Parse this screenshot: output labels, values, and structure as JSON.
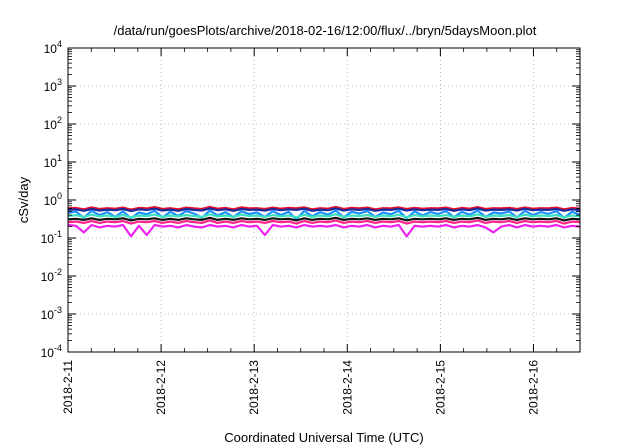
{
  "chart_data": {
    "type": "line",
    "title": "/data/run/goesPlots/archive/2018-02-16/12:00/flux/../bryn/5daysMoon.plot",
    "xlabel": "Coordinated Universal Time (UTC)",
    "ylabel": "cSv/day",
    "yscale": "log",
    "ylim": [
      0.0001,
      10000
    ],
    "xlim": [
      "2018-02-11T00:00",
      "2018-02-16T12:00"
    ],
    "grid": true,
    "y_ticks": [
      {
        "base": "10",
        "exp": "-4",
        "value": 0.0001
      },
      {
        "base": "10",
        "exp": "-3",
        "value": 0.001
      },
      {
        "base": "10",
        "exp": "-2",
        "value": 0.01
      },
      {
        "base": "10",
        "exp": "-1",
        "value": 0.1
      },
      {
        "base": "10",
        "exp": "0",
        "value": 1
      },
      {
        "base": "10",
        "exp": "1",
        "value": 10
      },
      {
        "base": "10",
        "exp": "2",
        "value": 100
      },
      {
        "base": "10",
        "exp": "3",
        "value": 1000
      },
      {
        "base": "10",
        "exp": "4",
        "value": 10000
      }
    ],
    "x_ticks": [
      "2018-2-11",
      "2018-2-12",
      "2018-2-13",
      "2018-2-14",
      "2018-2-15",
      "2018-2-16"
    ],
    "series": [
      {
        "color": "#e8102a",
        "values": [
          0.6,
          0.62,
          0.57,
          0.64,
          0.58,
          0.61,
          0.59,
          0.63,
          0.56,
          0.62,
          0.6,
          0.65,
          0.58,
          0.61,
          0.57,
          0.63,
          0.6,
          0.58,
          0.66,
          0.59,
          0.62,
          0.57,
          0.64,
          0.6,
          0.61,
          0.58,
          0.63,
          0.59,
          0.62,
          0.6,
          0.64,
          0.57,
          0.61,
          0.59,
          0.66,
          0.58,
          0.62,
          0.6,
          0.63,
          0.57,
          0.61,
          0.6,
          0.64,
          0.58,
          0.62,
          0.59,
          0.61,
          0.6,
          0.63,
          0.57,
          0.62,
          0.59,
          0.65,
          0.58,
          0.61,
          0.6,
          0.62,
          0.58,
          0.64,
          0.59,
          0.61,
          0.6,
          0.63,
          0.57,
          0.62,
          0.59
        ]
      },
      {
        "color": "#1a2a9a",
        "values": [
          0.55,
          0.57,
          0.52,
          0.58,
          0.53,
          0.56,
          0.54,
          0.58,
          0.51,
          0.57,
          0.55,
          0.59,
          0.53,
          0.56,
          0.52,
          0.58,
          0.55,
          0.53,
          0.6,
          0.54,
          0.57,
          0.52,
          0.58,
          0.55,
          0.56,
          0.53,
          0.58,
          0.54,
          0.57,
          0.55,
          0.59,
          0.52,
          0.56,
          0.54,
          0.6,
          0.53,
          0.57,
          0.55,
          0.58,
          0.52,
          0.56,
          0.55,
          0.59,
          0.53,
          0.57,
          0.54,
          0.56,
          0.55,
          0.58,
          0.52,
          0.57,
          0.54,
          0.6,
          0.53,
          0.56,
          0.55,
          0.57,
          0.53,
          0.59,
          0.54,
          0.56,
          0.55,
          0.58,
          0.52,
          0.57,
          0.54
        ]
      },
      {
        "color": "#1e90ff",
        "values": [
          0.45,
          0.5,
          0.34,
          0.52,
          0.4,
          0.48,
          0.36,
          0.5,
          0.33,
          0.47,
          0.42,
          0.52,
          0.35,
          0.49,
          0.38,
          0.51,
          0.44,
          0.34,
          0.53,
          0.39,
          0.48,
          0.35,
          0.5,
          0.43,
          0.47,
          0.36,
          0.51,
          0.4,
          0.49,
          0.31,
          0.52,
          0.37,
          0.48,
          0.41,
          0.53,
          0.35,
          0.49,
          0.44,
          0.51,
          0.36,
          0.47,
          0.42,
          0.52,
          0.33,
          0.5,
          0.39,
          0.48,
          0.43,
          0.51,
          0.35,
          0.49,
          0.41,
          0.53,
          0.36,
          0.47,
          0.44,
          0.5,
          0.35,
          0.52,
          0.4,
          0.48,
          0.43,
          0.51,
          0.34,
          0.49,
          0.41
        ]
      },
      {
        "color": "#3ee0c0",
        "values": [
          0.38,
          0.4,
          0.36,
          0.41,
          0.37,
          0.39,
          0.36,
          0.4,
          0.35,
          0.39,
          0.38,
          0.41,
          0.36,
          0.39,
          0.37,
          0.4,
          0.38,
          0.36,
          0.42,
          0.37,
          0.39,
          0.36,
          0.41,
          0.38,
          0.39,
          0.36,
          0.4,
          0.37,
          0.39,
          0.35,
          0.41,
          0.36,
          0.39,
          0.37,
          0.42,
          0.36,
          0.39,
          0.38,
          0.4,
          0.36,
          0.39,
          0.37,
          0.41,
          0.35,
          0.4,
          0.37,
          0.39,
          0.38,
          0.4,
          0.36,
          0.39,
          0.37,
          0.42,
          0.36,
          0.39,
          0.38,
          0.4,
          0.36,
          0.41,
          0.37,
          0.39,
          0.38,
          0.4,
          0.35,
          0.39,
          0.37
        ]
      },
      {
        "color": "#111111",
        "values": [
          0.31,
          0.32,
          0.3,
          0.33,
          0.3,
          0.32,
          0.31,
          0.33,
          0.29,
          0.32,
          0.31,
          0.33,
          0.3,
          0.32,
          0.3,
          0.33,
          0.31,
          0.3,
          0.34,
          0.3,
          0.32,
          0.3,
          0.33,
          0.31,
          0.32,
          0.3,
          0.33,
          0.31,
          0.32,
          0.29,
          0.33,
          0.3,
          0.32,
          0.31,
          0.34,
          0.3,
          0.32,
          0.31,
          0.33,
          0.3,
          0.32,
          0.31,
          0.33,
          0.29,
          0.32,
          0.31,
          0.32,
          0.31,
          0.33,
          0.3,
          0.32,
          0.31,
          0.34,
          0.3,
          0.32,
          0.31,
          0.33,
          0.3,
          0.33,
          0.31,
          0.32,
          0.31,
          0.33,
          0.29,
          0.32,
          0.31
        ]
      },
      {
        "color": "#ff2288",
        "values": [
          0.26,
          0.27,
          0.25,
          0.28,
          0.25,
          0.27,
          0.26,
          0.28,
          0.24,
          0.27,
          0.26,
          0.28,
          0.25,
          0.27,
          0.25,
          0.28,
          0.26,
          0.25,
          0.29,
          0.25,
          0.27,
          0.25,
          0.28,
          0.26,
          0.27,
          0.25,
          0.28,
          0.26,
          0.27,
          0.24,
          0.28,
          0.25,
          0.27,
          0.26,
          0.29,
          0.25,
          0.27,
          0.26,
          0.28,
          0.25,
          0.27,
          0.26,
          0.28,
          0.24,
          0.27,
          0.26,
          0.27,
          0.26,
          0.28,
          0.25,
          0.27,
          0.26,
          0.29,
          0.25,
          0.27,
          0.26,
          0.28,
          0.25,
          0.28,
          0.26,
          0.27,
          0.26,
          0.28,
          0.24,
          0.27,
          0.26
        ]
      },
      {
        "color": "#ee22ee",
        "values": [
          0.22,
          0.21,
          0.14,
          0.22,
          0.19,
          0.21,
          0.2,
          0.22,
          0.11,
          0.21,
          0.12,
          0.22,
          0.2,
          0.21,
          0.19,
          0.22,
          0.2,
          0.19,
          0.22,
          0.2,
          0.21,
          0.19,
          0.22,
          0.2,
          0.21,
          0.12,
          0.22,
          0.2,
          0.21,
          0.19,
          0.22,
          0.2,
          0.21,
          0.2,
          0.22,
          0.19,
          0.21,
          0.2,
          0.22,
          0.19,
          0.21,
          0.2,
          0.22,
          0.11,
          0.21,
          0.2,
          0.21,
          0.2,
          0.22,
          0.19,
          0.21,
          0.2,
          0.22,
          0.19,
          0.14,
          0.2,
          0.22,
          0.19,
          0.22,
          0.2,
          0.21,
          0.2,
          0.22,
          0.19,
          0.21,
          0.2
        ]
      }
    ]
  }
}
